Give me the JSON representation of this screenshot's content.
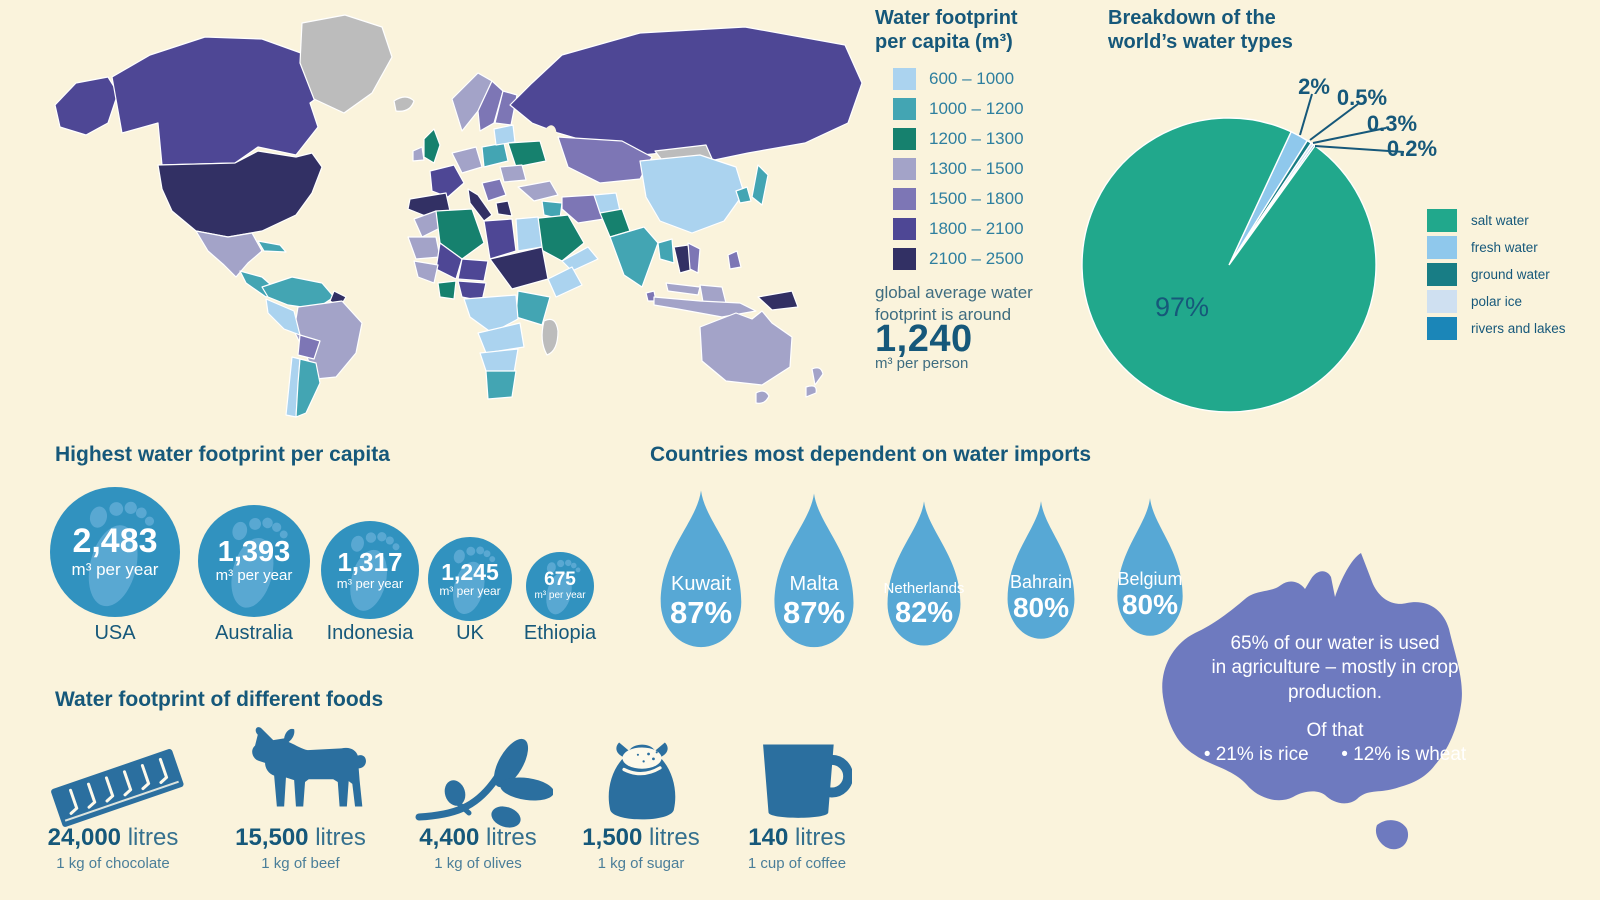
{
  "colors": {
    "bg": "#faf3dc",
    "ink": "#16587a",
    "tealtext": "#2e7f9f",
    "muted": "#3f6d80",
    "c600": "#abd3ef",
    "c1000": "#43a5b3",
    "c1200": "#16816e",
    "c1300": "#a3a3c8",
    "c1500": "#7d76b5",
    "c1800": "#4e4795",
    "c2100": "#323064",
    "nodata": "#bcbcbc",
    "circle": "#3192bf",
    "footprint": "#64aed8",
    "drop": "#57a8d5",
    "australia": "#6e7abf",
    "food": "#2b6f9f",
    "pie_salt": "#21a88c",
    "pie_fresh": "#8fc8ec",
    "pie_ground": "#187d85",
    "pie_polar": "#cfe0f1",
    "pie_rivers": "#1b86b8"
  },
  "map_legend": {
    "title_line1": "Water footprint",
    "title_line2": "per capita (m³)",
    "bins": [
      "600 – 1000",
      "1000 – 1200",
      "1200 – 1300",
      "1300 – 1500",
      "1500 – 1800",
      "1800 – 2100",
      "2100 – 2500"
    ],
    "note_line1": "global average water",
    "note_line2": "footprint is around",
    "average_value": "1,240",
    "average_unit": "m³ per person"
  },
  "pie_section": {
    "title_line1": "Breakdown of the",
    "title_line2": "world’s water types",
    "center_label": "97%",
    "callouts": [
      "2%",
      "0.5%",
      "0.3%",
      "0.2%"
    ],
    "legend": [
      "salt water",
      "fresh water",
      "ground water",
      "polar ice",
      "rivers and lakes"
    ]
  },
  "footprints": {
    "title": "Highest water footprint per capita",
    "unit": "m³ per year",
    "items": [
      {
        "value": "2,483",
        "country": "USA"
      },
      {
        "value": "1,393",
        "country": "Australia"
      },
      {
        "value": "1,317",
        "country": "Indonesia"
      },
      {
        "value": "1,245",
        "country": "UK"
      },
      {
        "value": "675",
        "country": "Ethiopia"
      }
    ]
  },
  "imports": {
    "title": "Countries most dependent on water imports",
    "items": [
      {
        "country": "Kuwait",
        "pct": "87%"
      },
      {
        "country": "Malta",
        "pct": "87%"
      },
      {
        "country": "Netherlands",
        "pct": "82%"
      },
      {
        "country": "Bahrain",
        "pct": "80%"
      },
      {
        "country": "Belgium",
        "pct": "80%"
      }
    ]
  },
  "australia_note": {
    "line1": "65% of our water is used",
    "line2": "in agriculture – mostly in crop",
    "line3": "production.",
    "line4": "Of that",
    "bullet1": "• 21% is rice",
    "bullet2": "• 12% is wheat"
  },
  "foods": {
    "title": "Water footprint of different foods",
    "items": [
      {
        "value": "24,000",
        "unit": "litres",
        "caption": "1 kg of chocolate"
      },
      {
        "value": "15,500",
        "unit": "litres",
        "caption": "1 kg of beef"
      },
      {
        "value": "4,400",
        "unit": "litres",
        "caption": "1 kg of olives"
      },
      {
        "value": "1,500",
        "unit": "litres",
        "caption": "1 kg of sugar"
      },
      {
        "value": "140",
        "unit": "litres",
        "caption": "1 cup of coffee"
      }
    ]
  },
  "chart_data": [
    {
      "type": "pie",
      "title": "Breakdown of the world’s water types",
      "labels": [
        "salt water",
        "fresh water",
        "ground water",
        "polar ice",
        "rivers and lakes"
      ],
      "values": [
        97,
        2,
        0.5,
        0.3,
        0.2
      ],
      "value_labels": [
        "97%",
        "2%",
        "0.5%",
        "0.3%",
        "0.2%"
      ],
      "colors": [
        "pie_salt",
        "pie_fresh",
        "pie_ground",
        "pie_polar",
        "pie_rivers"
      ],
      "legend_position": "right",
      "start_angle_deg": 25
    },
    {
      "type": "heatmap",
      "subtype": "choropleth-world-map",
      "title": "Water footprint per capita (m³)",
      "bins": [
        "600 – 1000",
        "1000 – 1200",
        "1200 – 1300",
        "1300 – 1500",
        "1500 – 1800",
        "1800 – 2100",
        "2100 – 2500"
      ],
      "global_average": "1,240 m³ per person"
    },
    {
      "type": "bar",
      "subtype": "pictogram-footprints",
      "title": "Highest water footprint per capita",
      "categories": [
        "USA",
        "Australia",
        "Indonesia",
        "UK",
        "Ethiopia"
      ],
      "values": [
        2483,
        1393,
        1317,
        1245,
        675
      ],
      "ylabel": "m³ per year"
    },
    {
      "type": "bar",
      "subtype": "pictogram-waterdrops",
      "title": "Countries most dependent on water imports",
      "categories": [
        "Kuwait",
        "Malta",
        "Netherlands",
        "Bahrain",
        "Belgium"
      ],
      "values": [
        87,
        87,
        82,
        80,
        80
      ],
      "ylabel": "%"
    },
    {
      "type": "bar",
      "subtype": "pictogram-foods",
      "title": "Water footprint of different foods",
      "categories": [
        "1 kg of chocolate",
        "1 kg of beef",
        "1 kg of olives",
        "1 kg of sugar",
        "1 cup of coffee"
      ],
      "values": [
        24000,
        15500,
        4400,
        1500,
        140
      ],
      "ylabel": "litres"
    },
    {
      "type": "bar",
      "subtype": "australia-agriculture-note",
      "categories": [
        "agriculture share of water use",
        "rice (of that)",
        "wheat (of that)"
      ],
      "values": [
        65,
        21,
        12
      ],
      "ylabel": "%"
    }
  ]
}
